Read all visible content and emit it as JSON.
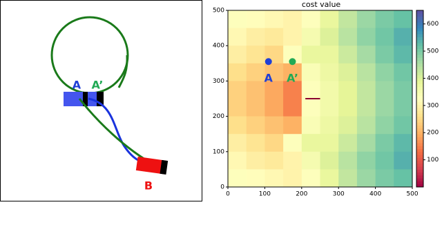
{
  "diagram": {
    "labels": [
      "A",
      "A’",
      "B"
    ]
  },
  "chart_data": {
    "type": "heatmap",
    "title": "cost value",
    "colormap": "Spectral",
    "x": [
      25,
      75,
      125,
      175,
      225,
      275,
      325,
      375,
      425,
      475
    ],
    "y": [
      475,
      425,
      375,
      325,
      275,
      225,
      175,
      125,
      75,
      25
    ],
    "values": [
      [
        330,
        320,
        310,
        300,
        330,
        380,
        430,
        470,
        500,
        520
      ],
      [
        310,
        290,
        280,
        300,
        350,
        400,
        440,
        480,
        510,
        540
      ],
      [
        290,
        270,
        250,
        330,
        380,
        380,
        420,
        460,
        500,
        530
      ],
      [
        260,
        240,
        220,
        200,
        340,
        370,
        400,
        440,
        480,
        510
      ],
      [
        240,
        220,
        190,
        150,
        330,
        360,
        390,
        430,
        470,
        500
      ],
      [
        240,
        220,
        190,
        150,
        330,
        360,
        390,
        430,
        470,
        500
      ],
      [
        260,
        240,
        220,
        200,
        340,
        370,
        400,
        440,
        480,
        510
      ],
      [
        290,
        270,
        250,
        330,
        380,
        380,
        420,
        460,
        500,
        530
      ],
      [
        310,
        290,
        280,
        300,
        350,
        400,
        440,
        480,
        510,
        540
      ],
      [
        330,
        320,
        310,
        300,
        330,
        380,
        430,
        470,
        500,
        520
      ]
    ],
    "xlim": [
      0,
      500
    ],
    "ylim": [
      0,
      500
    ],
    "xticks": [
      0,
      100,
      200,
      300,
      400,
      500
    ],
    "yticks": [
      0,
      100,
      200,
      300,
      400,
      500
    ],
    "clim": [
      0,
      650
    ],
    "cticks": [
      100,
      200,
      300,
      400,
      500,
      600
    ],
    "points": [
      {
        "label": "A",
        "x": 110,
        "y": 355,
        "color": "#1f3fd6"
      },
      {
        "label": "A’",
        "x": 175,
        "y": 355,
        "color": "#22aa55"
      }
    ]
  }
}
